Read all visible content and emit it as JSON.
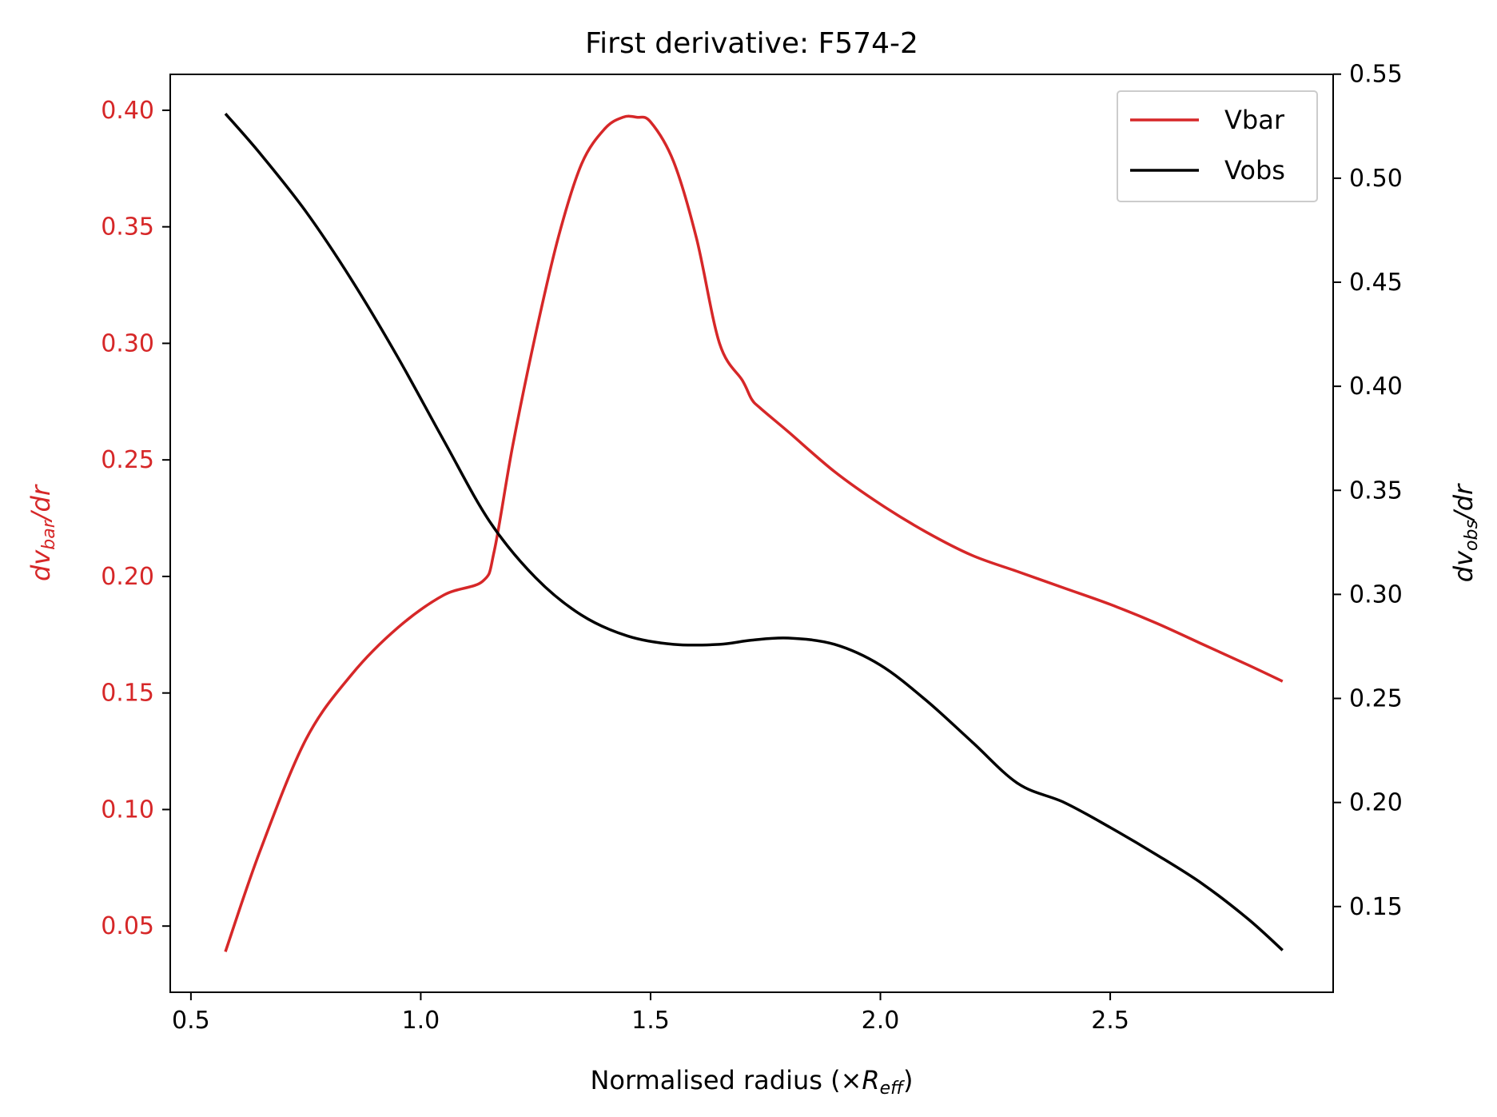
{
  "chart_data": {
    "type": "line",
    "title": "First derivative: F574-2",
    "xlabel": "Normalised radius (×R_eff)",
    "xlabel_parts": {
      "prefix": "Normalised radius (×",
      "symbol": "R",
      "sub": "eff",
      "suffix": ")"
    },
    "ylabel_left": {
      "text": "dv_bar/dr",
      "prefix": "dv",
      "sub": "bar",
      "suffix": "/dr"
    },
    "ylabel_right": {
      "text": "dv_obs/dr",
      "prefix": "dv",
      "sub": "obs",
      "suffix": "/dr"
    },
    "xlim": [
      0.455,
      2.985
    ],
    "ylim_left": [
      0.0216,
      0.4154
    ],
    "ylim_right": [
      0.1088,
      0.5499
    ],
    "x_ticks": [
      0.5,
      1.0,
      1.5,
      2.0,
      2.5
    ],
    "x_tick_labels": [
      "0.5",
      "1.0",
      "1.5",
      "2.0",
      "2.5"
    ],
    "y_left_ticks": [
      0.05,
      0.1,
      0.15,
      0.2,
      0.25,
      0.3,
      0.35,
      0.4
    ],
    "y_left_tick_labels": [
      "0.05",
      "0.10",
      "0.15",
      "0.20",
      "0.25",
      "0.30",
      "0.35",
      "0.40"
    ],
    "y_right_ticks": [
      0.15,
      0.2,
      0.25,
      0.3,
      0.35,
      0.4,
      0.45,
      0.5,
      0.55
    ],
    "y_right_tick_labels": [
      "0.15",
      "0.20",
      "0.25",
      "0.30",
      "0.35",
      "0.40",
      "0.45",
      "0.50",
      "0.55"
    ],
    "grid": false,
    "legend_position": "top-right",
    "colors": {
      "vbar": "#d62728",
      "vobs": "#000000",
      "left_axis_text": "#d62728",
      "text": "#000000"
    },
    "series": [
      {
        "name": "Vbar",
        "axis": "left",
        "color": "#d62728",
        "x": [
          0.575,
          0.65,
          0.75,
          0.85,
          0.95,
          1.05,
          1.135,
          1.16,
          1.2,
          1.25,
          1.3,
          1.35,
          1.4,
          1.44,
          1.47,
          1.5,
          1.55,
          1.6,
          1.65,
          1.7,
          1.72,
          1.74,
          1.8,
          1.9,
          2.0,
          2.1,
          2.2,
          2.3,
          2.4,
          2.5,
          2.6,
          2.7,
          2.8,
          2.875
        ],
        "y": [
          0.039,
          0.082,
          0.13,
          0.158,
          0.178,
          0.192,
          0.198,
          0.211,
          0.256,
          0.304,
          0.346,
          0.377,
          0.392,
          0.397,
          0.397,
          0.395,
          0.378,
          0.345,
          0.3,
          0.284,
          0.276,
          0.272,
          0.262,
          0.245,
          0.231,
          0.219,
          0.209,
          0.202,
          0.195,
          0.188,
          0.18,
          0.171,
          0.162,
          0.155
        ]
      },
      {
        "name": "Vobs",
        "axis": "right",
        "color": "#000000",
        "x": [
          0.575,
          0.65,
          0.75,
          0.85,
          0.95,
          1.05,
          1.15,
          1.25,
          1.35,
          1.45,
          1.55,
          1.65,
          1.72,
          1.8,
          1.9,
          2.0,
          2.1,
          2.2,
          2.3,
          2.4,
          2.5,
          2.6,
          2.7,
          2.8,
          2.875
        ],
        "y": [
          0.531,
          0.512,
          0.484,
          0.451,
          0.414,
          0.374,
          0.335,
          0.308,
          0.29,
          0.28,
          0.276,
          0.276,
          0.278,
          0.279,
          0.276,
          0.266,
          0.249,
          0.229,
          0.209,
          0.2,
          0.188,
          0.175,
          0.161,
          0.144,
          0.129
        ]
      }
    ]
  }
}
